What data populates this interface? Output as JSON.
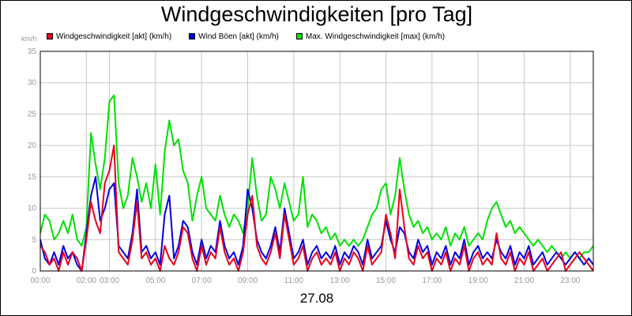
{
  "title": "Windgeschwindigkeiten [pro Tag]",
  "unit_label": "km/h",
  "date_label": "27.08",
  "legend": [
    {
      "label": "Windgeschwindigkeit [akt] (km/h)",
      "color": "#e8001c"
    },
    {
      "label": "Wind Böen [akt] (km/h)",
      "color": "#0000e0"
    },
    {
      "label": "Max. Windgeschwindigkeit [max] (km/h)",
      "color": "#00e000"
    }
  ],
  "chart_data": {
    "type": "line",
    "title": "Windgeschwindigkeiten [pro Tag]",
    "ylabel": "km/h",
    "xlabel": "27.08",
    "xlim": [
      0,
      24
    ],
    "ylim": [
      0,
      35
    ],
    "grid": true,
    "legend_position": "top",
    "x_ticks": [
      "00:00",
      "02:00",
      "03:00",
      "05:00",
      "07:00",
      "09:00",
      "11:00",
      "13:00",
      "15:00",
      "17:00",
      "19:00",
      "21:00",
      "23:00"
    ],
    "x_tick_hours": [
      0,
      2,
      3,
      5,
      7,
      9,
      11,
      13,
      15,
      17,
      19,
      21,
      23
    ],
    "y_ticks": [
      0,
      5,
      10,
      15,
      20,
      25,
      30,
      35
    ],
    "series": [
      {
        "name": "Windgeschwindigkeit [akt] (km/h)",
        "color": "#e8001c",
        "x": [
          0,
          0.2,
          0.4,
          0.6,
          0.8,
          1.0,
          1.2,
          1.4,
          1.6,
          1.8,
          2.0,
          2.2,
          2.4,
          2.6,
          2.8,
          3.0,
          3.2,
          3.4,
          3.6,
          3.8,
          4.0,
          4.2,
          4.4,
          4.6,
          4.8,
          5.0,
          5.2,
          5.4,
          5.6,
          5.8,
          6.0,
          6.2,
          6.4,
          6.6,
          6.8,
          7.0,
          7.2,
          7.4,
          7.6,
          7.8,
          8.0,
          8.2,
          8.4,
          8.6,
          8.8,
          9.0,
          9.2,
          9.4,
          9.6,
          9.8,
          10.0,
          10.2,
          10.4,
          10.6,
          10.8,
          11.0,
          11.2,
          11.4,
          11.6,
          11.8,
          12.0,
          12.2,
          12.4,
          12.6,
          12.8,
          13.0,
          13.2,
          13.4,
          13.6,
          13.8,
          14.0,
          14.2,
          14.4,
          14.6,
          14.8,
          15.0,
          15.2,
          15.4,
          15.6,
          15.8,
          16.0,
          16.2,
          16.4,
          16.6,
          16.8,
          17.0,
          17.2,
          17.4,
          17.6,
          17.8,
          18.0,
          18.2,
          18.4,
          18.6,
          18.8,
          19.0,
          19.2,
          19.4,
          19.6,
          19.8,
          20.0,
          20.2,
          20.4,
          20.6,
          20.8,
          21.0,
          21.2,
          21.4,
          21.6,
          21.8,
          22.0,
          22.2,
          22.4,
          22.6,
          22.8,
          23.0,
          23.2,
          23.4,
          23.6,
          23.8,
          24.0
        ],
        "values": [
          4,
          3,
          1,
          2,
          0,
          3,
          1,
          3,
          2,
          0,
          5,
          11,
          8,
          6,
          14,
          16,
          20,
          3,
          2,
          1,
          5,
          11,
          2,
          3,
          1,
          2,
          0,
          4,
          2,
          1,
          3,
          7,
          6,
          2,
          0,
          4,
          1,
          3,
          2,
          7,
          3,
          1,
          2,
          0,
          3,
          9,
          12,
          4,
          2,
          1,
          3,
          6,
          2,
          9,
          5,
          1,
          2,
          4,
          0,
          2,
          3,
          1,
          2,
          1,
          3,
          0,
          2,
          1,
          3,
          2,
          0,
          4,
          1,
          2,
          3,
          9,
          6,
          2,
          13,
          7,
          2,
          1,
          4,
          2,
          3,
          0,
          2,
          1,
          3,
          0,
          2,
          1,
          4,
          0,
          2,
          3,
          1,
          2,
          1,
          6,
          2,
          1,
          3,
          0,
          2,
          1,
          3,
          0,
          1,
          2,
          0,
          1,
          2,
          3,
          0,
          1,
          2,
          3,
          2,
          1,
          0
        ]
      },
      {
        "name": "Wind Böen [akt] (km/h)",
        "color": "#0000e0",
        "x": [
          0,
          0.2,
          0.4,
          0.6,
          0.8,
          1.0,
          1.2,
          1.4,
          1.6,
          1.8,
          2.0,
          2.2,
          2.4,
          2.6,
          2.8,
          3.0,
          3.2,
          3.4,
          3.6,
          3.8,
          4.0,
          4.2,
          4.4,
          4.6,
          4.8,
          5.0,
          5.2,
          5.4,
          5.6,
          5.8,
          6.0,
          6.2,
          6.4,
          6.6,
          6.8,
          7.0,
          7.2,
          7.4,
          7.6,
          7.8,
          8.0,
          8.2,
          8.4,
          8.6,
          8.8,
          9.0,
          9.2,
          9.4,
          9.6,
          9.8,
          10.0,
          10.2,
          10.4,
          10.6,
          10.8,
          11.0,
          11.2,
          11.4,
          11.6,
          11.8,
          12.0,
          12.2,
          12.4,
          12.6,
          12.8,
          13.0,
          13.2,
          13.4,
          13.6,
          13.8,
          14.0,
          14.2,
          14.4,
          14.6,
          14.8,
          15.0,
          15.2,
          15.4,
          15.6,
          15.8,
          16.0,
          16.2,
          16.4,
          16.6,
          16.8,
          17.0,
          17.2,
          17.4,
          17.6,
          17.8,
          18.0,
          18.2,
          18.4,
          18.6,
          18.8,
          19.0,
          19.2,
          19.4,
          19.6,
          19.8,
          20.0,
          20.2,
          20.4,
          20.6,
          20.8,
          21.0,
          21.2,
          21.4,
          21.6,
          21.8,
          22.0,
          22.2,
          22.4,
          22.6,
          22.8,
          23.0,
          23.2,
          23.4,
          23.6,
          23.8,
          24.0
        ],
        "values": [
          5,
          2,
          1,
          3,
          1,
          4,
          2,
          3,
          1,
          0,
          6,
          12,
          15,
          8,
          10,
          13,
          14,
          4,
          3,
          2,
          6,
          13,
          3,
          4,
          2,
          3,
          1,
          9,
          12,
          2,
          4,
          8,
          7,
          3,
          1,
          5,
          2,
          4,
          3,
          8,
          4,
          2,
          3,
          1,
          4,
          13,
          10,
          5,
          3,
          2,
          4,
          7,
          3,
          10,
          6,
          2,
          3,
          5,
          1,
          3,
          4,
          2,
          3,
          2,
          4,
          1,
          3,
          2,
          4,
          3,
          1,
          5,
          2,
          3,
          4,
          8,
          5,
          3,
          7,
          6,
          3,
          2,
          5,
          3,
          4,
          1,
          3,
          2,
          4,
          1,
          3,
          2,
          5,
          1,
          3,
          4,
          2,
          3,
          2,
          5,
          3,
          2,
          4,
          1,
          3,
          2,
          4,
          1,
          2,
          3,
          1,
          2,
          3,
          2,
          1,
          2,
          3,
          2,
          1,
          2,
          1
        ]
      },
      {
        "name": "Max. Windgeschwindigkeit [max] (km/h)",
        "color": "#00e000",
        "x": [
          0,
          0.2,
          0.4,
          0.6,
          0.8,
          1.0,
          1.2,
          1.4,
          1.6,
          1.8,
          2.0,
          2.2,
          2.4,
          2.6,
          2.8,
          3.0,
          3.2,
          3.4,
          3.6,
          3.8,
          4.0,
          4.2,
          4.4,
          4.6,
          4.8,
          5.0,
          5.2,
          5.4,
          5.6,
          5.8,
          6.0,
          6.2,
          6.4,
          6.6,
          6.8,
          7.0,
          7.2,
          7.4,
          7.6,
          7.8,
          8.0,
          8.2,
          8.4,
          8.6,
          8.8,
          9.0,
          9.2,
          9.4,
          9.6,
          9.8,
          10.0,
          10.2,
          10.4,
          10.6,
          10.8,
          11.0,
          11.2,
          11.4,
          11.6,
          11.8,
          12.0,
          12.2,
          12.4,
          12.6,
          12.8,
          13.0,
          13.2,
          13.4,
          13.6,
          13.8,
          14.0,
          14.2,
          14.4,
          14.6,
          14.8,
          15.0,
          15.2,
          15.4,
          15.6,
          15.8,
          16.0,
          16.2,
          16.4,
          16.6,
          16.8,
          17.0,
          17.2,
          17.4,
          17.6,
          17.8,
          18.0,
          18.2,
          18.4,
          18.6,
          18.8,
          19.0,
          19.2,
          19.4,
          19.6,
          19.8,
          20.0,
          20.2,
          20.4,
          20.6,
          20.8,
          21.0,
          21.2,
          21.4,
          21.6,
          21.8,
          22.0,
          22.2,
          22.4,
          22.6,
          22.8,
          23.0,
          23.2,
          23.4,
          23.6,
          23.8,
          24.0
        ],
        "values": [
          6,
          9,
          8,
          5,
          6,
          8,
          6,
          9,
          5,
          4,
          7,
          22,
          17,
          13,
          18,
          27,
          28,
          14,
          10,
          12,
          18,
          15,
          11,
          14,
          10,
          17,
          9,
          19,
          24,
          20,
          21,
          16,
          14,
          8,
          12,
          15,
          10,
          9,
          8,
          12,
          9,
          7,
          9,
          8,
          6,
          10,
          18,
          12,
          8,
          9,
          15,
          13,
          10,
          14,
          11,
          8,
          9,
          15,
          7,
          9,
          8,
          6,
          7,
          5,
          6,
          4,
          5,
          4,
          5,
          4,
          5,
          7,
          9,
          10,
          13,
          14,
          9,
          12,
          18,
          13,
          9,
          7,
          8,
          6,
          7,
          5,
          6,
          5,
          7,
          4,
          6,
          5,
          7,
          4,
          5,
          6,
          5,
          8,
          10,
          11,
          9,
          7,
          8,
          6,
          7,
          6,
          5,
          4,
          5,
          4,
          3,
          4,
          3,
          2,
          3,
          2,
          3,
          2,
          3,
          3,
          4
        ]
      }
    ]
  }
}
